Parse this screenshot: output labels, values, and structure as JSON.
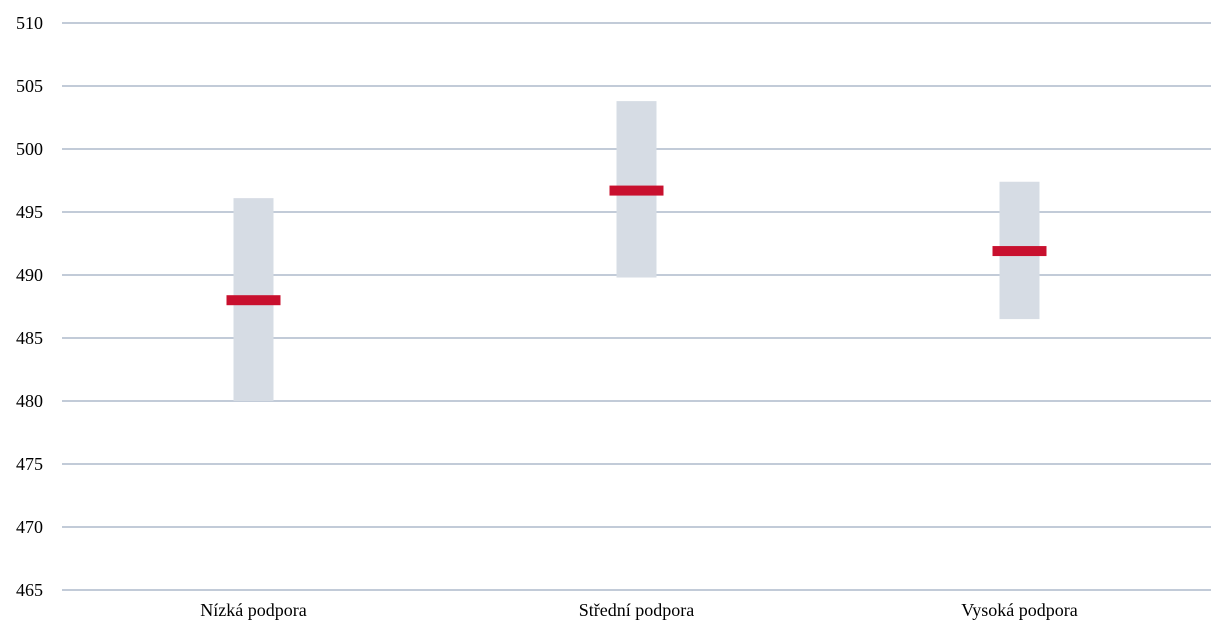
{
  "chart_data": {
    "type": "range",
    "title": "",
    "xlabel": "",
    "ylabel": "",
    "ylim": [
      465,
      510
    ],
    "yticks": [
      465,
      470,
      475,
      480,
      485,
      490,
      495,
      500,
      505,
      510
    ],
    "categories": [
      "Nízká podpora",
      "Střední podpora",
      "Vysoká podpora"
    ],
    "series": [
      {
        "values": [
          488.0,
          496.7,
          491.9
        ]
      }
    ],
    "ranges": [
      {
        "low": 480.0,
        "high": 496.1
      },
      {
        "low": 489.8,
        "high": 503.8
      },
      {
        "low": 486.5,
        "high": 497.4
      }
    ],
    "grid": true,
    "legend": "none"
  },
  "colors": {
    "range_band": "#d6dce4",
    "mean_marker": "#c8102e",
    "gridline": "#8497b0"
  }
}
